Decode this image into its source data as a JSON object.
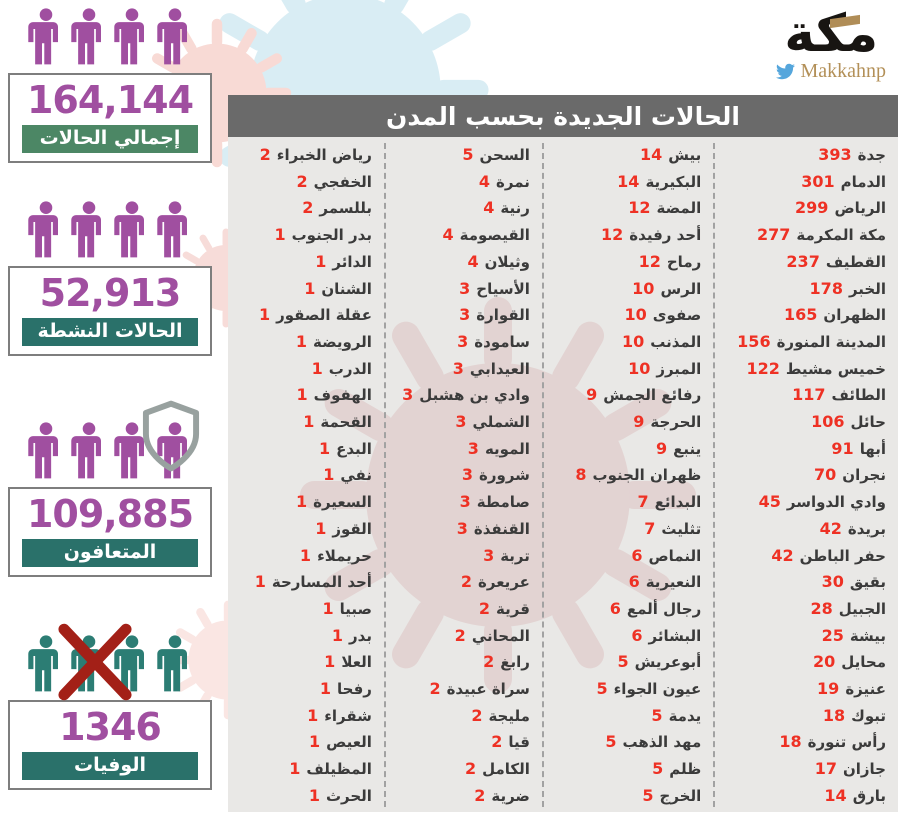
{
  "brand": {
    "logo_text": "مكة",
    "twitter_handle": "Makkahnp",
    "twitter_icon": "twitter-bird-icon",
    "logo_color": "#181512",
    "gold_color": "#b08d57",
    "twitter_blue": "#55a6dc"
  },
  "stats": [
    {
      "value": "164,144",
      "label": "إجمالي الحالات",
      "icon": "people-group-icon"
    },
    {
      "value": "52,913",
      "label": "الحالات النشطة",
      "icon": "people-group-icon"
    },
    {
      "value": "109,885",
      "label": "المتعافون",
      "icon": "people-group-shield-icon"
    },
    {
      "value": "1346",
      "label": "الوفيات",
      "icon": "people-group-x-icon"
    }
  ],
  "colors": {
    "stat_number": "#a04fa0",
    "people_purple": "#a04fa0",
    "people_teal": "#2c7d74",
    "death_x": "#a32017",
    "label_band_green": "#4c8765",
    "label_band_teal": "#2a716a",
    "table_header_bg": "#6a6a6a",
    "table_bg": "#e9e8e6",
    "case_number_red": "#ee3124",
    "city_text": "#3b3b3b"
  },
  "chart_data": {
    "type": "table",
    "title": "الحالات الجديدة بحسب المدن",
    "summary": {
      "total_cases": 164144,
      "active_cases": 52913,
      "recovered": 109885,
      "deaths": 1346
    },
    "columns_rtl": [
      [
        {
          "city": "جدة",
          "value": 393
        },
        {
          "city": "الدمام",
          "value": 301
        },
        {
          "city": "الرياض",
          "value": 299
        },
        {
          "city": "مكة المكرمة",
          "value": 277
        },
        {
          "city": "القطيف",
          "value": 237
        },
        {
          "city": "الخبر",
          "value": 178
        },
        {
          "city": "الظهران",
          "value": 165
        },
        {
          "city": "المدينة المنورة",
          "value": 156
        },
        {
          "city": "خميس مشيط",
          "value": 122
        },
        {
          "city": "الطائف",
          "value": 117
        },
        {
          "city": "حائل",
          "value": 106
        },
        {
          "city": "أبها",
          "value": 91
        },
        {
          "city": "نجران",
          "value": 70
        },
        {
          "city": "وادي الدواسر",
          "value": 45
        },
        {
          "city": "بريدة",
          "value": 42
        },
        {
          "city": "حفر الباطن",
          "value": 42
        },
        {
          "city": "بقيق",
          "value": 30
        },
        {
          "city": "الجبيل",
          "value": 28
        },
        {
          "city": "بيشة",
          "value": 25
        },
        {
          "city": "محايل",
          "value": 20
        },
        {
          "city": "عنيزة",
          "value": 19
        },
        {
          "city": "تبوك",
          "value": 18
        },
        {
          "city": "رأس تنورة",
          "value": 18
        },
        {
          "city": "جازان",
          "value": 17
        },
        {
          "city": "بارق",
          "value": 14
        }
      ],
      [
        {
          "city": "بيش",
          "value": 14
        },
        {
          "city": "البكيرية",
          "value": 14
        },
        {
          "city": "المضة",
          "value": 12
        },
        {
          "city": "أحد رفيدة",
          "value": 12
        },
        {
          "city": "رماح",
          "value": 12
        },
        {
          "city": "الرس",
          "value": 10
        },
        {
          "city": "صفوى",
          "value": 10
        },
        {
          "city": "المذنب",
          "value": 10
        },
        {
          "city": "المبرز",
          "value": 10
        },
        {
          "city": "رفائع الجمش",
          "value": 9
        },
        {
          "city": "الحرجة",
          "value": 9
        },
        {
          "city": "ينبع",
          "value": 9
        },
        {
          "city": "ظهران الجنوب",
          "value": 8
        },
        {
          "city": "البدائع",
          "value": 7
        },
        {
          "city": "تثليث",
          "value": 7
        },
        {
          "city": "النماص",
          "value": 6
        },
        {
          "city": "النعيرية",
          "value": 6
        },
        {
          "city": "رجال ألمع",
          "value": 6
        },
        {
          "city": "البشائر",
          "value": 6
        },
        {
          "city": "أبوعريش",
          "value": 5
        },
        {
          "city": "عيون الجواء",
          "value": 5
        },
        {
          "city": "يدمة",
          "value": 5
        },
        {
          "city": "مهد الذهب",
          "value": 5
        },
        {
          "city": "ظلم",
          "value": 5
        },
        {
          "city": "الخرج",
          "value": 5
        }
      ],
      [
        {
          "city": "السحن",
          "value": 5
        },
        {
          "city": "نمرة",
          "value": 4
        },
        {
          "city": "رنية",
          "value": 4
        },
        {
          "city": "القيصومة",
          "value": 4
        },
        {
          "city": "وثيلان",
          "value": 4
        },
        {
          "city": "الأسياح",
          "value": 3
        },
        {
          "city": "القوارة",
          "value": 3
        },
        {
          "city": "سامودة",
          "value": 3
        },
        {
          "city": "العيدابي",
          "value": 3
        },
        {
          "city": "وادي بن هشبل",
          "value": 3
        },
        {
          "city": "الشملي",
          "value": 3
        },
        {
          "city": "المويه",
          "value": 3
        },
        {
          "city": "شرورة",
          "value": 3
        },
        {
          "city": "صامطة",
          "value": 3
        },
        {
          "city": "القنفذة",
          "value": 3
        },
        {
          "city": "تربة",
          "value": 3
        },
        {
          "city": "عريعرة",
          "value": 2
        },
        {
          "city": "قرية",
          "value": 2
        },
        {
          "city": "المحاني",
          "value": 2
        },
        {
          "city": "رابغ",
          "value": 2
        },
        {
          "city": "سراة عبيدة",
          "value": 2
        },
        {
          "city": "مليجة",
          "value": 2
        },
        {
          "city": "قيا",
          "value": 2
        },
        {
          "city": "الكامل",
          "value": 2
        },
        {
          "city": "ضرية",
          "value": 2
        }
      ],
      [
        {
          "city": "رياض الخبراء",
          "value": 2
        },
        {
          "city": "الخفجي",
          "value": 2
        },
        {
          "city": "بللسمر",
          "value": 2
        },
        {
          "city": "بدر الجنوب",
          "value": 1
        },
        {
          "city": "الدائر",
          "value": 1
        },
        {
          "city": "الشنان",
          "value": 1
        },
        {
          "city": "عقلة الصقور",
          "value": 1
        },
        {
          "city": "الرويضة",
          "value": 1
        },
        {
          "city": "الدرب",
          "value": 1
        },
        {
          "city": "الهفوف",
          "value": 1
        },
        {
          "city": "القحمة",
          "value": 1
        },
        {
          "city": "البدع",
          "value": 1
        },
        {
          "city": "نفي",
          "value": 1
        },
        {
          "city": "السعيرة",
          "value": 1
        },
        {
          "city": "القوز",
          "value": 1
        },
        {
          "city": "حريملاء",
          "value": 1
        },
        {
          "city": "أحد المسارحة",
          "value": 1
        },
        {
          "city": "صبيا",
          "value": 1
        },
        {
          "city": "بدر",
          "value": 1
        },
        {
          "city": "العلا",
          "value": 1
        },
        {
          "city": "رفحا",
          "value": 1
        },
        {
          "city": "شقراء",
          "value": 1
        },
        {
          "city": "العيص",
          "value": 1
        },
        {
          "city": "المظيلف",
          "value": 1
        },
        {
          "city": "الحرث",
          "value": 1
        }
      ]
    ]
  }
}
